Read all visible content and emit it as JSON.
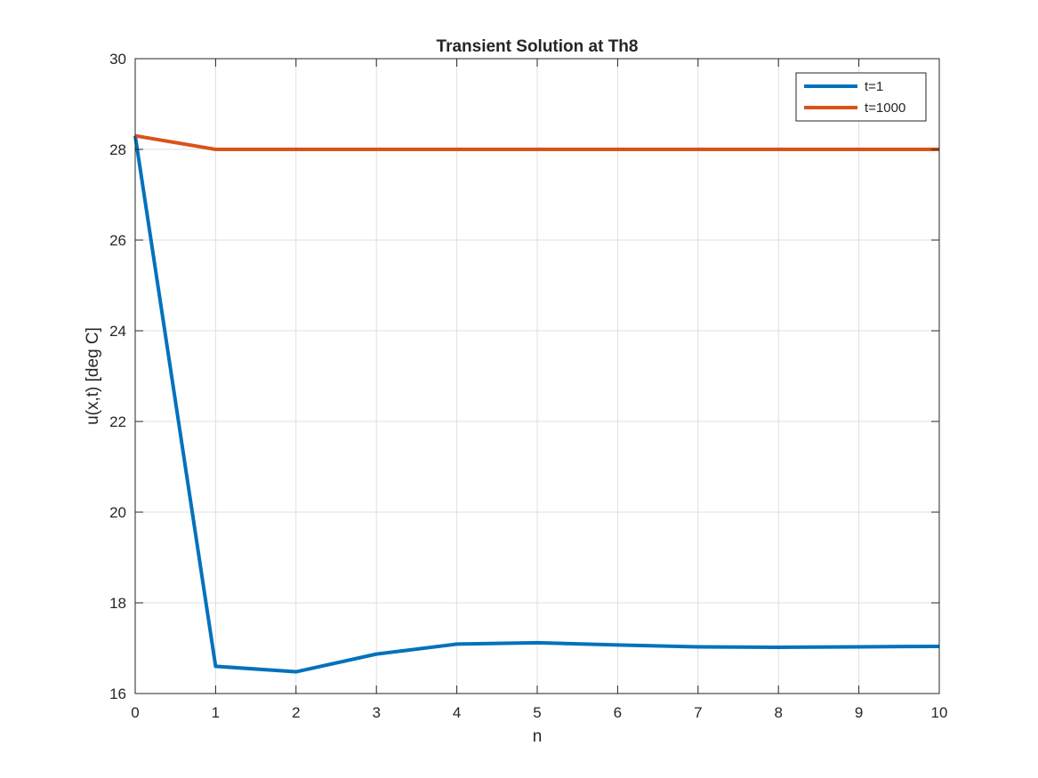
{
  "chart_data": {
    "type": "line",
    "title": "Transient Solution at Th8",
    "xlabel": "n",
    "ylabel": "u(x,t) [deg C]",
    "xlim": [
      0,
      10
    ],
    "ylim": [
      16,
      30
    ],
    "xticks": [
      0,
      1,
      2,
      3,
      4,
      5,
      6,
      7,
      8,
      9,
      10
    ],
    "yticks": [
      16,
      18,
      20,
      22,
      24,
      26,
      28,
      30
    ],
    "grid": true,
    "legend_position": "top-right",
    "x": [
      0,
      1,
      2,
      3,
      4,
      5,
      6,
      7,
      8,
      9,
      10
    ],
    "series": [
      {
        "name": "t=1",
        "color": "#0072BD",
        "values": [
          28.3,
          16.6,
          16.48,
          16.87,
          17.09,
          17.12,
          17.07,
          17.03,
          17.02,
          17.03,
          17.04
        ]
      },
      {
        "name": "t=1000",
        "color": "#D95319",
        "values": [
          28.3,
          28.0,
          28.0,
          28.0,
          28.0,
          28.0,
          28.0,
          28.0,
          28.0,
          28.0,
          28.0
        ]
      }
    ]
  }
}
